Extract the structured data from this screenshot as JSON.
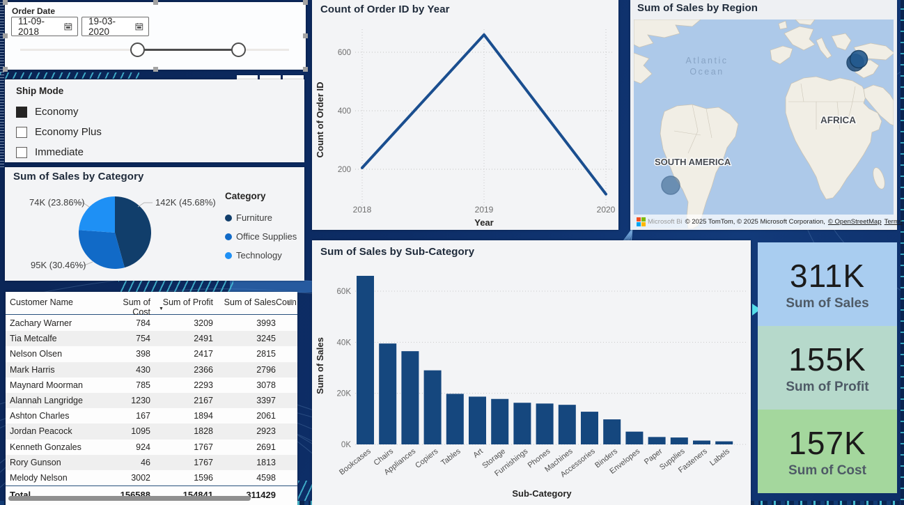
{
  "slicers": {
    "order_date": {
      "title": "Order Date",
      "start_date": "11-09-2018",
      "end_date": "19-03-2020"
    },
    "ship_mode": {
      "title": "Ship Mode",
      "options": [
        {
          "label": "Economy",
          "checked": true
        },
        {
          "label": "Economy Plus",
          "checked": false
        },
        {
          "label": "Immediate",
          "checked": false
        }
      ]
    }
  },
  "visual_header_icons": [
    "filter",
    "focus-mode",
    "more-options"
  ],
  "table": {
    "columns": [
      "Customer Name",
      "Sum of Cost",
      "Sum of Profit",
      "Sum of Sales",
      "Coun"
    ],
    "sorted_column": "Sum of Profit",
    "rows": [
      [
        "Zachary Warner",
        "784",
        "3209",
        "3993"
      ],
      [
        "Tia Metcalfe",
        "754",
        "2491",
        "3245"
      ],
      [
        "Nelson Olsen",
        "398",
        "2417",
        "2815"
      ],
      [
        "Mark Harris",
        "430",
        "2366",
        "2796"
      ],
      [
        "Maynard Moorman",
        "785",
        "2293",
        "3078"
      ],
      [
        "Alannah Langridge",
        "1230",
        "2167",
        "3397"
      ],
      [
        "Ashton Charles",
        "167",
        "1894",
        "2061"
      ],
      [
        "Jordan Peacock",
        "1095",
        "1828",
        "2923"
      ],
      [
        "Kenneth Gonzales",
        "924",
        "1767",
        "2691"
      ],
      [
        "Rory Gunson",
        "46",
        "1767",
        "1813"
      ],
      [
        "Melody Nelson",
        "3002",
        "1596",
        "4598"
      ]
    ],
    "total": {
      "label": "Total",
      "cost": "156588",
      "profit": "154841",
      "sales": "311429"
    }
  },
  "kpis": [
    {
      "value": "311K",
      "label": "Sum of Sales",
      "bg": "#a9cdf0"
    },
    {
      "value": "155K",
      "label": "Sum of Profit",
      "bg": "#b6d9cb"
    },
    {
      "value": "157K",
      "label": "Sum of Cost",
      "bg": "#a4d79d"
    }
  ],
  "map": {
    "title": "Sum of Sales by Region",
    "ocean_line1": "Atlantic",
    "ocean_line2": "Ocean",
    "south_america_label": "SOUTH AMERICA",
    "africa_label": "AFRICA",
    "bubbles": [
      {
        "region": "Middle East",
        "color": "#235a8f"
      },
      {
        "region": "South America",
        "color": "#3f688f"
      }
    ],
    "attribution": {
      "logo_text": "Microsoft Bi",
      "text": "© 2025 TomTom, © 2025 Microsoft Corporation,",
      "osm_link": "© OpenStreetMap",
      "terms_link": "Terms"
    }
  },
  "chart_data": [
    {
      "type": "pie",
      "title": "Sum of Sales by Category",
      "legend_title": "Category",
      "legend_position": "right",
      "slices": [
        {
          "label": "Furniture",
          "value_label": "142K (45.68%)",
          "percent": 45.68,
          "color": "#113e6b"
        },
        {
          "label": "Office Supplies",
          "value_label": "95K (30.46%)",
          "percent": 30.46,
          "color": "#116ac7"
        },
        {
          "label": "Technology",
          "value_label": "74K (23.86%)",
          "percent": 23.86,
          "color": "#1e90f5"
        }
      ]
    },
    {
      "type": "line",
      "title": "Count of Order ID by Year",
      "xlabel": "Year",
      "ylabel": "Count of Order ID",
      "x": [
        "2018",
        "2019",
        "2020"
      ],
      "values": [
        205,
        660,
        115
      ],
      "yticks": [
        200,
        400,
        600
      ],
      "ylim": [
        0,
        700
      ],
      "grid": true,
      "color": "#1a4e8f"
    },
    {
      "type": "bar",
      "title": "Sum of Sales by Sub-Category",
      "xlabel": "Sub-Category",
      "ylabel": "Sum of Sales",
      "categories": [
        "Bookcases",
        "Chairs",
        "Appliances",
        "Copiers",
        "Tables",
        "Art",
        "Storage",
        "Furnishings",
        "Phones",
        "Machines",
        "Accessories",
        "Binders",
        "Envelopes",
        "Paper",
        "Supplies",
        "Fasteners",
        "Labels"
      ],
      "values_k": [
        66,
        39.5,
        36.5,
        29,
        19.8,
        18.7,
        17.8,
        16.3,
        16,
        15.5,
        12.8,
        9.8,
        5,
        2.9,
        2.7,
        1.5,
        1.2
      ],
      "yticks": [
        "0K",
        "20K",
        "40K",
        "60K"
      ],
      "ylim_k": [
        0,
        70
      ],
      "grid": true,
      "color": "#15477e"
    }
  ]
}
